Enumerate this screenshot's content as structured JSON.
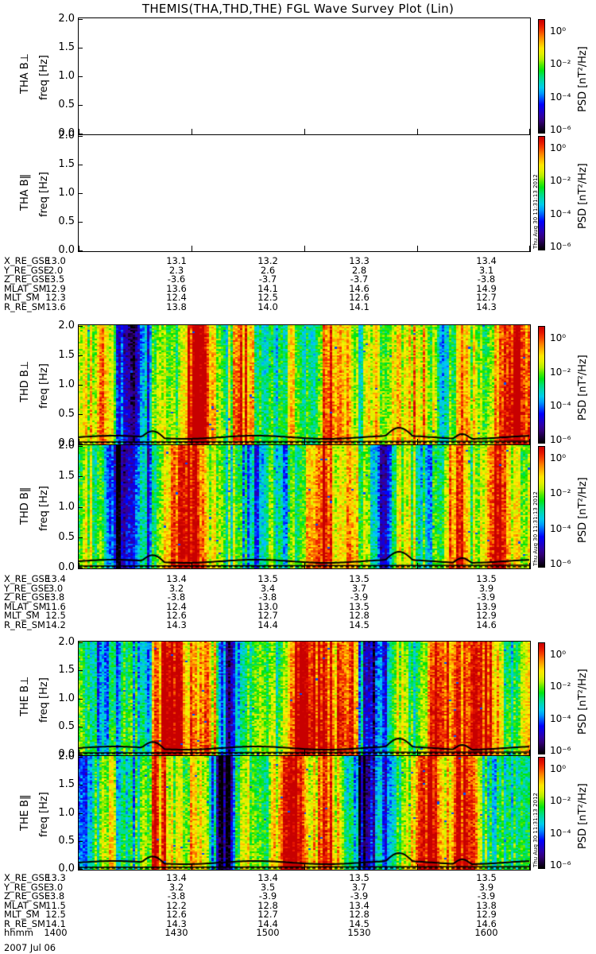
{
  "title": "THEMIS(THA,THD,THE) FGL Wave Survey Plot (Lin)",
  "chart_data": {
    "type": "heatmap",
    "date": "2007 Jul 06",
    "time_axis": {
      "label": "hhmm",
      "ticks": [
        "1400",
        "1430",
        "1500",
        "1530",
        "1600"
      ]
    },
    "freq_axis": {
      "unit": "freq [Hz]",
      "ylim": [
        0.0,
        2.0
      ],
      "ticks": [
        "0.0",
        "0.5",
        "1.0",
        "1.5",
        "2.0"
      ]
    },
    "colorbar": {
      "label": "PSD [nT²/Hz]",
      "scale": "log",
      "ticks": [
        "10⁰",
        "10⁻²",
        "10⁻⁴",
        "10⁻⁶"
      ],
      "stamp": "Thu Aug 30 11:31:13 2012"
    },
    "panels": [
      {
        "probe": "THA",
        "component": "THA B⊥",
        "has_data": false
      },
      {
        "probe": "THA",
        "component": "THA B‖",
        "has_data": false
      },
      {
        "probe": "THD",
        "component": "THD B⊥",
        "has_data": true
      },
      {
        "probe": "THD",
        "component": "THD B‖",
        "has_data": true
      },
      {
        "probe": "THE",
        "component": "THE B⊥",
        "has_data": true
      },
      {
        "probe": "THE",
        "component": "THE B‖",
        "has_data": true
      }
    ],
    "ephemeris": [
      {
        "probe": "THA",
        "rows": [
          {
            "name": "X_RE_GSE",
            "values": [
              "13.0",
              "13.1",
              "13.2",
              "13.3",
              "13.4"
            ]
          },
          {
            "name": "Y_RE_GSE",
            "values": [
              "2.0",
              "2.3",
              "2.6",
              "2.8",
              "3.1"
            ]
          },
          {
            "name": "Z_RE_GSE",
            "values": [
              "-3.5",
              "-3.6",
              "-3.7",
              "-3.7",
              "-3.8"
            ]
          },
          {
            "name": "MLAT_SM",
            "values": [
              "12.9",
              "13.6",
              "14.1",
              "14.6",
              "14.9"
            ]
          },
          {
            "name": "MLT_SM",
            "values": [
              "12.3",
              "12.4",
              "12.5",
              "12.6",
              "12.7"
            ]
          },
          {
            "name": "R_RE_SM",
            "values": [
              "13.6",
              "13.8",
              "14.0",
              "14.1",
              "14.3"
            ]
          }
        ]
      },
      {
        "probe": "THD",
        "rows": [
          {
            "name": "X_RE_GSE",
            "values": [
              "13.4",
              "13.4",
              "13.5",
              "13.5",
              "13.5"
            ]
          },
          {
            "name": "Y_RE_GSE",
            "values": [
              "3.0",
              "3.2",
              "3.4",
              "3.7",
              "3.9"
            ]
          },
          {
            "name": "Z_RE_GSE",
            "values": [
              "-3.8",
              "-3.8",
              "-3.8",
              "-3.9",
              "-3.9"
            ]
          },
          {
            "name": "MLAT_SM",
            "values": [
              "11.6",
              "12.4",
              "13.0",
              "13.5",
              "13.9"
            ]
          },
          {
            "name": "MLT_SM",
            "values": [
              "12.5",
              "12.6",
              "12.7",
              "12.8",
              "12.9"
            ]
          },
          {
            "name": "R_RE_SM",
            "values": [
              "14.2",
              "14.3",
              "14.4",
              "14.5",
              "14.6"
            ]
          }
        ]
      },
      {
        "probe": "THE",
        "rows": [
          {
            "name": "X_RE_GSE",
            "values": [
              "13.3",
              "13.4",
              "13.4",
              "13.5",
              "13.5"
            ]
          },
          {
            "name": "Y_RE_GSE",
            "values": [
              "3.0",
              "3.2",
              "3.5",
              "3.7",
              "3.9"
            ]
          },
          {
            "name": "Z_RE_GSE",
            "values": [
              "-3.8",
              "-3.8",
              "-3.9",
              "-3.9",
              "-3.9"
            ]
          },
          {
            "name": "MLAT_SM",
            "values": [
              "11.5",
              "12.2",
              "12.8",
              "13.4",
              "13.8"
            ]
          },
          {
            "name": "MLT_SM",
            "values": [
              "12.5",
              "12.6",
              "12.7",
              "12.8",
              "12.9"
            ]
          },
          {
            "name": "R_RE_SM",
            "values": [
              "14.1",
              "14.3",
              "14.4",
              "14.5",
              "14.6"
            ]
          },
          {
            "name": "hhmm",
            "values": [
              "1400",
              "1430",
              "1500",
              "1530",
              "1600"
            ]
          }
        ]
      }
    ]
  }
}
